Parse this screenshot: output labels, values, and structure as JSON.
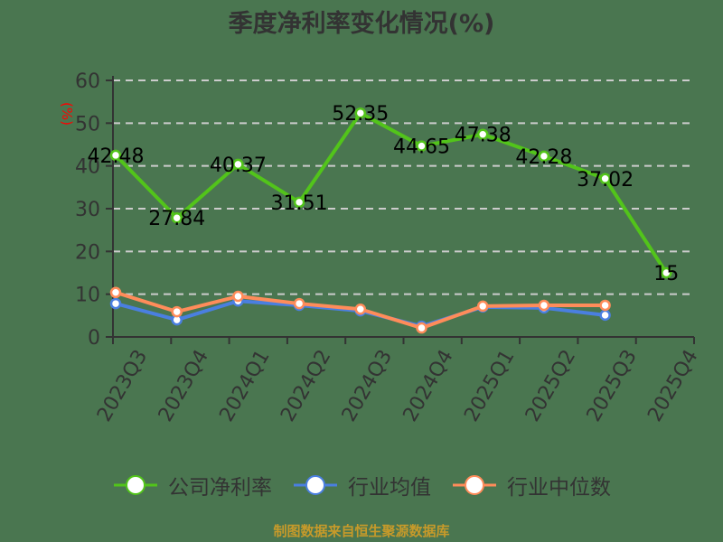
{
  "title": "季度净利率变化情况(%)",
  "footer": "制图数据来自恒生聚源数据库",
  "colors": {
    "company": "#52c41a",
    "avg": "#4a7fe0",
    "median": "#ff8c5a",
    "axis": "#333333",
    "grid": "#cccccc",
    "ylabel": "#ff0000",
    "footer": "#c79a2a",
    "background": "#4a7650"
  },
  "legend": [
    {
      "name": "公司净利率",
      "color": "#52c41a"
    },
    {
      "name": "行业均值",
      "color": "#4a7fe0"
    },
    {
      "name": "行业中位数",
      "color": "#ff8c5a"
    }
  ],
  "chart_data": {
    "type": "line",
    "title": "季度净利率变化情况(%)",
    "xlabel": "",
    "ylabel": "(%)",
    "ylim": [
      0,
      60
    ],
    "yticks": [
      0,
      10,
      20,
      30,
      40,
      50,
      60
    ],
    "grid": true,
    "legend_position": "bottom",
    "categories": [
      "2023Q3",
      "2023Q4",
      "2024Q1",
      "2024Q2",
      "2024Q3",
      "2024Q4",
      "2025Q1",
      "2025Q2",
      "2025Q3",
      "2025Q4"
    ],
    "series": [
      {
        "name": "公司净利率",
        "values": [
          42.48,
          27.84,
          40.37,
          31.51,
          52.35,
          44.65,
          47.38,
          42.28,
          37.02,
          15
        ],
        "labels": [
          "42.48",
          "27.84",
          "40.37",
          "31.51",
          "52.35",
          "44.65",
          "47.38",
          "42.28",
          "37.02",
          "15"
        ]
      },
      {
        "name": "行业均值",
        "values": [
          7.8,
          4.0,
          8.4,
          7.4,
          6.1,
          2.5,
          7.0,
          6.8,
          5.1,
          null
        ]
      },
      {
        "name": "行业中位数",
        "values": [
          10.4,
          5.9,
          9.5,
          7.8,
          6.5,
          2.1,
          7.2,
          7.4,
          7.4,
          null
        ]
      }
    ]
  }
}
